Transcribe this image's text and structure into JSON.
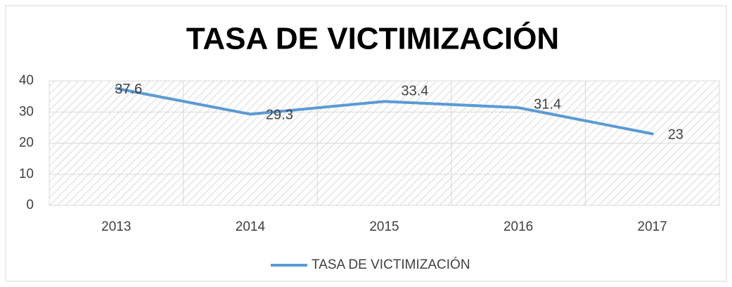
{
  "chart_data": {
    "type": "line",
    "title": "TASA DE VICTIMIZACIÓN",
    "categories": [
      "2013",
      "2014",
      "2015",
      "2016",
      "2017"
    ],
    "series": [
      {
        "name": "TASA DE VICTIMIZACIÓN",
        "color": "#5b9bd5",
        "values": [
          37.6,
          29.3,
          33.4,
          31.4,
          23
        ]
      }
    ],
    "ylim": [
      0,
      40
    ],
    "yticks": [
      0,
      10,
      20,
      30,
      40
    ],
    "grid": true,
    "data_labels": true,
    "legend": "bottom"
  }
}
